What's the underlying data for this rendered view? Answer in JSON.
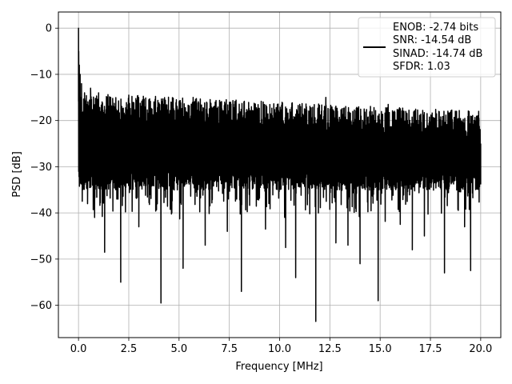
{
  "chart_data": {
    "type": "line",
    "xlabel": "Frequency [MHz]",
    "ylabel": "PSD [dB]",
    "xlim": [
      -1.0,
      21.0
    ],
    "ylim": [
      -67.0,
      3.5
    ],
    "xticks": [
      0.0,
      2.5,
      5.0,
      7.5,
      10.0,
      12.5,
      15.0,
      17.5,
      20.0
    ],
    "xtick_labels": [
      "0.0",
      "2.5",
      "5.0",
      "7.5",
      "10.0",
      "12.5",
      "15.0",
      "17.5",
      "20.0"
    ],
    "yticks": [
      0,
      -10,
      -20,
      -30,
      -40,
      -50,
      -60
    ],
    "ytick_labels": [
      "0",
      "−10",
      "−20",
      "−30",
      "−40",
      "−50",
      "−60"
    ],
    "grid": true,
    "legend_position": "top-right",
    "series": [
      {
        "name": "ENOB: -2.74 bits\nSNR: -14.54 dB\nSINAD: -14.74 dB\nSFDR: 1.03",
        "color": "#000000",
        "x": [
          0.0,
          0.01,
          0.02,
          0.04,
          0.06,
          0.08,
          0.1,
          0.15,
          0.2,
          0.3,
          0.45,
          0.6,
          0.8,
          1.0,
          1.3,
          1.6,
          2.1,
          2.5,
          3.0,
          3.5,
          4.1,
          4.6,
          5.2,
          5.7,
          6.3,
          6.8,
          7.4,
          8.1,
          8.6,
          9.3,
          10.3,
          10.8,
          11.3,
          11.8,
          12.3,
          12.8,
          13.4,
          14.0,
          14.9,
          15.4,
          16.0,
          16.6,
          17.2,
          18.2,
          18.8,
          19.2,
          19.5,
          19.9,
          20.0
        ],
        "values": [
          0.0,
          -5.0,
          -18.0,
          -8.0,
          -22.0,
          -10.0,
          -25.0,
          -12.0,
          -30.0,
          -14.0,
          -38.0,
          -13.0,
          -41.0,
          -14.0,
          -48.5,
          -15.0,
          -55.0,
          -14.5,
          -43.0,
          -15.5,
          -59.5,
          -16.0,
          -52.0,
          -15.0,
          -47.0,
          -16.0,
          -44.0,
          -57.0,
          -17.0,
          -43.5,
          -47.5,
          -54.0,
          -17.5,
          -63.5,
          -15.0,
          -46.5,
          -47.0,
          -51.0,
          -59.0,
          -16.5,
          -42.5,
          -48.0,
          -45.0,
          -53.0,
          -18.0,
          -43.0,
          -52.5,
          -18.0,
          -25.0
        ]
      }
    ],
    "noise": {
      "bins": 2048,
      "baseline": -26.0,
      "upper_envelope_near_zero": -14.0,
      "upper_envelope_at_20mhz": -18.0,
      "lower_typical": -33.0,
      "lower_deep": -40.0
    }
  },
  "legend": {
    "lines": [
      "ENOB: -2.74 bits",
      "SNR: -14.54 dB",
      "SINAD: -14.74 dB",
      "SFDR: 1.03"
    ]
  }
}
